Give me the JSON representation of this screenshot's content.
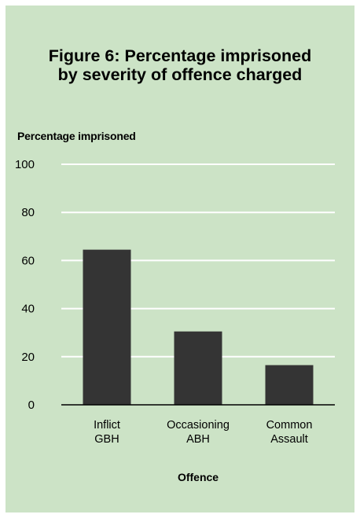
{
  "chart_data": {
    "type": "bar",
    "title_lines": [
      "Figure 6: Percentage imprisoned",
      "by severity of offence charged"
    ],
    "ylabel": "Percentage imprisoned",
    "xlabel": "Offence",
    "categories": [
      [
        "Inflict",
        "GBH"
      ],
      [
        "Occasioning",
        "ABH"
      ],
      [
        "Common",
        "Assault"
      ]
    ],
    "values": [
      64.5,
      30.5,
      16.5
    ],
    "ylim": [
      0,
      100
    ],
    "yticks": [
      0,
      20,
      40,
      60,
      80,
      100
    ],
    "grid": true,
    "colors": {
      "background": "#cce3c6",
      "bar": "#343434",
      "grid": "#ffffff",
      "axis": "#000000"
    }
  }
}
